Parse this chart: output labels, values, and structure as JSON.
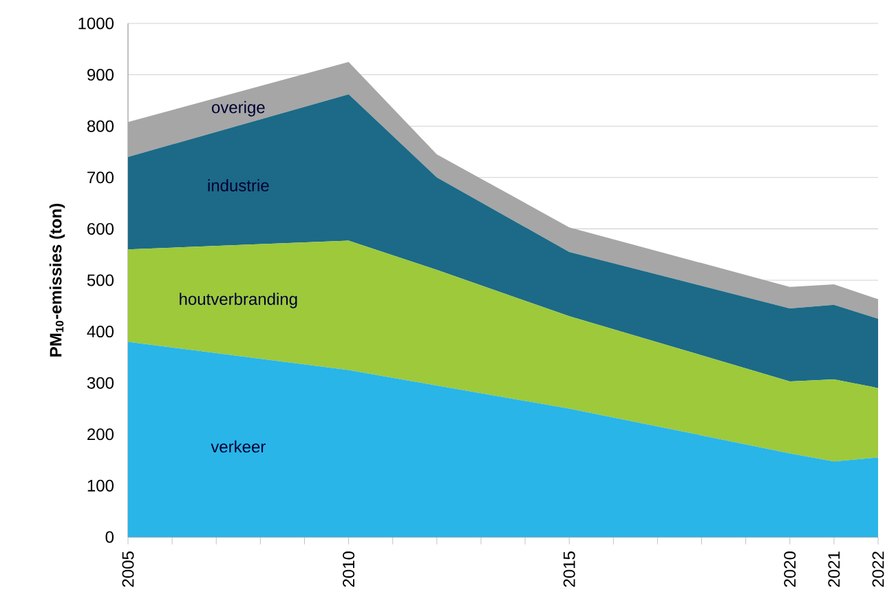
{
  "chart_data": {
    "type": "area",
    "stacked": true,
    "ylabel": "PM$_{10}$-emissies   (ton)",
    "x": [
      2005,
      2010,
      2012,
      2015,
      2020,
      2021,
      2022
    ],
    "series": [
      {
        "name": "verkeer",
        "color": "#29b5e8",
        "values": [
          380,
          325,
          295,
          250,
          163,
          147,
          155
        ]
      },
      {
        "name": "houtverbranding",
        "color": "#9dc93b",
        "values": [
          180,
          252,
          225,
          180,
          140,
          160,
          135
        ]
      },
      {
        "name": "industrie",
        "color": "#1c6a87",
        "values": [
          180,
          285,
          180,
          125,
          142,
          145,
          135
        ]
      },
      {
        "name": "overige",
        "color": "#a6a6a6",
        "values": [
          68,
          63,
          45,
          48,
          42,
          40,
          38
        ]
      }
    ],
    "xlim": [
      2005,
      2022
    ],
    "xticks": [
      2005,
      {
        "value": 2006,
        "label": null
      },
      {
        "value": 2007,
        "label": null
      },
      {
        "value": 2008,
        "label": null
      },
      {
        "value": 2009,
        "label": null
      },
      2010,
      {
        "value": 2011,
        "label": null
      },
      {
        "value": 2012,
        "label": null
      },
      {
        "value": 2013,
        "label": null
      },
      {
        "value": 2014,
        "label": null
      },
      2015,
      {
        "value": 2016,
        "label": null
      },
      {
        "value": 2017,
        "label": null
      },
      {
        "value": 2018,
        "label": null
      },
      {
        "value": 2019,
        "label": null
      },
      2020,
      2021,
      2022
    ],
    "ylim": [
      0,
      1000
    ],
    "yticks": [
      0,
      100,
      200,
      300,
      400,
      500,
      600,
      700,
      800,
      900,
      1000
    ],
    "grid": "y",
    "legend": false
  }
}
